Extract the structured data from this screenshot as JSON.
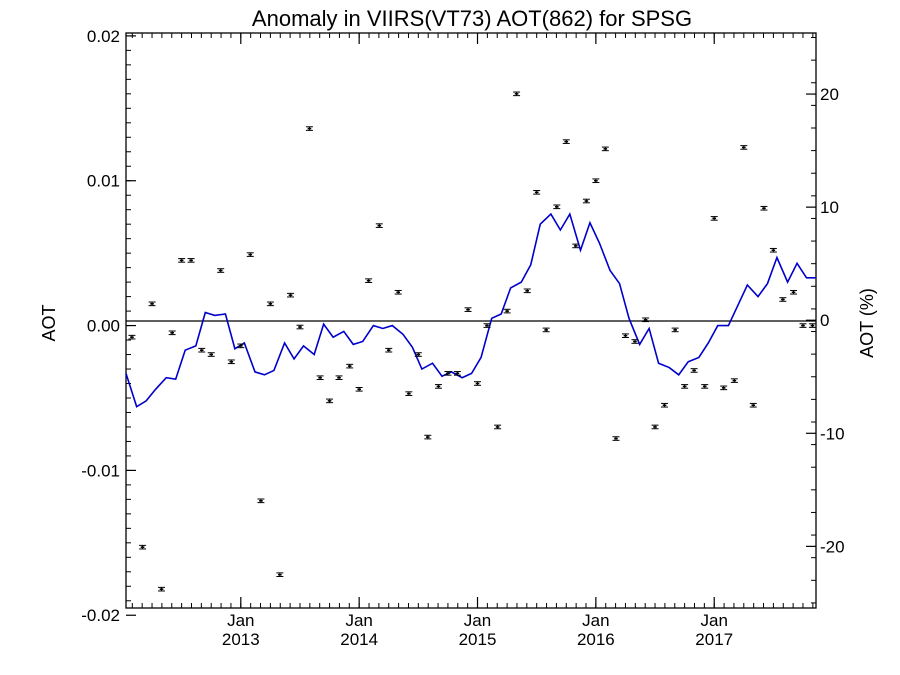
{
  "chart_data": {
    "type": "scatter",
    "title": "Anomaly in VIIRS(VT73) AOT(862) for SPSG",
    "ylabel": "AOT",
    "y2label": "AOT (%)",
    "xlabel": "",
    "x_range": [
      2012.03,
      2017.86
    ],
    "ylim": [
      -0.0195,
      0.0202
    ],
    "y2lim": [
      -25.45,
      25.4
    ],
    "y_ticks": [
      "-0.02",
      "-0.01",
      "0.00",
      "0.01",
      "0.02"
    ],
    "y_tick_values": [
      -0.02,
      -0.01,
      0.0,
      0.01,
      0.02
    ],
    "y2_ticks": [
      "-20",
      "-10",
      "0",
      "10",
      "20"
    ],
    "y2_tick_values": [
      -20,
      -10,
      0,
      10,
      20
    ],
    "x_tick_month": [
      "Jan",
      "Jan",
      "Jan",
      "Jan",
      "Jan"
    ],
    "x_tick_year": [
      "2013",
      "2014",
      "2015",
      "2016",
      "2017"
    ],
    "x_tick_values": [
      2013.0,
      2014.0,
      2015.0,
      2016.0,
      2017.0
    ],
    "zero_line": true,
    "grid": false,
    "legend": "none",
    "colors": {
      "line": "#0000cc",
      "points": "#000000",
      "axis": "#000000"
    },
    "series": [
      {
        "type": "scatter_errorbar",
        "x": [
          2012.08,
          2012.17,
          2012.25,
          2012.33,
          2012.42,
          2012.5,
          2012.58,
          2012.67,
          2012.75,
          2012.83,
          2012.92,
          2013.0,
          2013.08,
          2013.17,
          2013.25,
          2013.33,
          2013.42,
          2013.5,
          2013.58,
          2013.67,
          2013.75,
          2013.83,
          2013.92,
          2014.0,
          2014.08,
          2014.17,
          2014.25,
          2014.33,
          2014.42,
          2014.5,
          2014.58,
          2014.67,
          2014.75,
          2014.83,
          2014.92,
          2015.0,
          2015.08,
          2015.17,
          2015.25,
          2015.33,
          2015.42,
          2015.5,
          2015.58,
          2015.67,
          2015.75,
          2015.83,
          2015.92,
          2016.0,
          2016.08,
          2016.17,
          2016.25,
          2016.33,
          2016.42,
          2016.5,
          2016.58,
          2016.67,
          2016.75,
          2016.83,
          2016.92,
          2017.0,
          2017.08,
          2017.17,
          2017.25,
          2017.33,
          2017.42,
          2017.5,
          2017.58,
          2017.67,
          2017.75,
          2017.83
        ],
        "y": [
          -0.0008,
          -0.0153,
          0.0015,
          -0.0182,
          -0.0005,
          0.0045,
          0.0045,
          -0.0017,
          -0.002,
          0.0038,
          -0.0025,
          -0.0014,
          0.0049,
          -0.0121,
          0.0015,
          -0.0172,
          0.0021,
          -0.0001,
          0.0136,
          -0.0036,
          -0.0052,
          -0.0036,
          -0.0028,
          -0.0044,
          0.0031,
          0.0069,
          -0.0017,
          0.0023,
          -0.0047,
          -0.002,
          -0.0077,
          -0.0042,
          -0.0033,
          -0.0033,
          0.0011,
          -0.004,
          0.0,
          -0.007,
          0.001,
          0.016,
          0.0024,
          0.0092,
          -0.0003,
          0.0082,
          0.0127,
          0.0055,
          0.0086,
          0.01,
          0.0122,
          -0.0078,
          -0.0007,
          -0.0011,
          0.0004,
          -0.007,
          -0.0055,
          -0.0003,
          -0.0042,
          -0.0031,
          -0.0042,
          0.0074,
          -0.0043,
          -0.0038,
          0.0123,
          -0.0055,
          0.0081,
          0.0052,
          0.0018,
          0.0023,
          0.0,
          0.0
        ]
      },
      {
        "type": "line",
        "x": [
          2012.03,
          2012.12,
          2012.2,
          2012.28,
          2012.37,
          2012.45,
          2012.53,
          2012.62,
          2012.7,
          2012.78,
          2012.87,
          2012.95,
          2013.03,
          2013.12,
          2013.2,
          2013.28,
          2013.37,
          2013.45,
          2013.53,
          2013.62,
          2013.7,
          2013.78,
          2013.87,
          2013.95,
          2014.03,
          2014.12,
          2014.2,
          2014.28,
          2014.37,
          2014.45,
          2014.53,
          2014.62,
          2014.7,
          2014.78,
          2014.87,
          2014.95,
          2015.03,
          2015.12,
          2015.2,
          2015.28,
          2015.37,
          2015.45,
          2015.53,
          2015.62,
          2015.7,
          2015.78,
          2015.87,
          2015.95,
          2016.03,
          2016.12,
          2016.2,
          2016.28,
          2016.37,
          2016.45,
          2016.53,
          2016.62,
          2016.7,
          2016.78,
          2016.87,
          2016.95,
          2017.03,
          2017.12,
          2017.2,
          2017.28,
          2017.37,
          2017.45,
          2017.53,
          2017.62,
          2017.7,
          2017.78,
          2017.86
        ],
        "y": [
          -0.0033,
          -0.0056,
          -0.0052,
          -0.0044,
          -0.0036,
          -0.0037,
          -0.0017,
          -0.0014,
          0.0009,
          0.0007,
          0.0008,
          -0.0016,
          -0.0012,
          -0.0032,
          -0.0034,
          -0.0031,
          -0.0012,
          -0.0023,
          -0.0014,
          -0.002,
          0.0001,
          -0.0008,
          -0.0004,
          -0.0013,
          -0.0011,
          0.0,
          -0.0002,
          0.0,
          -0.0006,
          -0.0015,
          -0.003,
          -0.0026,
          -0.0035,
          -0.0032,
          -0.0036,
          -0.0033,
          -0.0022,
          0.0005,
          0.0008,
          0.0026,
          0.003,
          0.0042,
          0.007,
          0.0077,
          0.0066,
          0.0077,
          0.0052,
          0.0071,
          0.0057,
          0.0038,
          0.0029,
          0.0005,
          -0.0013,
          -0.0002,
          -0.0026,
          -0.0029,
          -0.0034,
          -0.0025,
          -0.0022,
          -0.0012,
          0.0,
          0.0,
          0.0014,
          0.0028,
          0.002,
          0.0029,
          0.0047,
          0.003,
          0.0043,
          0.0033,
          0.0033
        ]
      }
    ]
  }
}
